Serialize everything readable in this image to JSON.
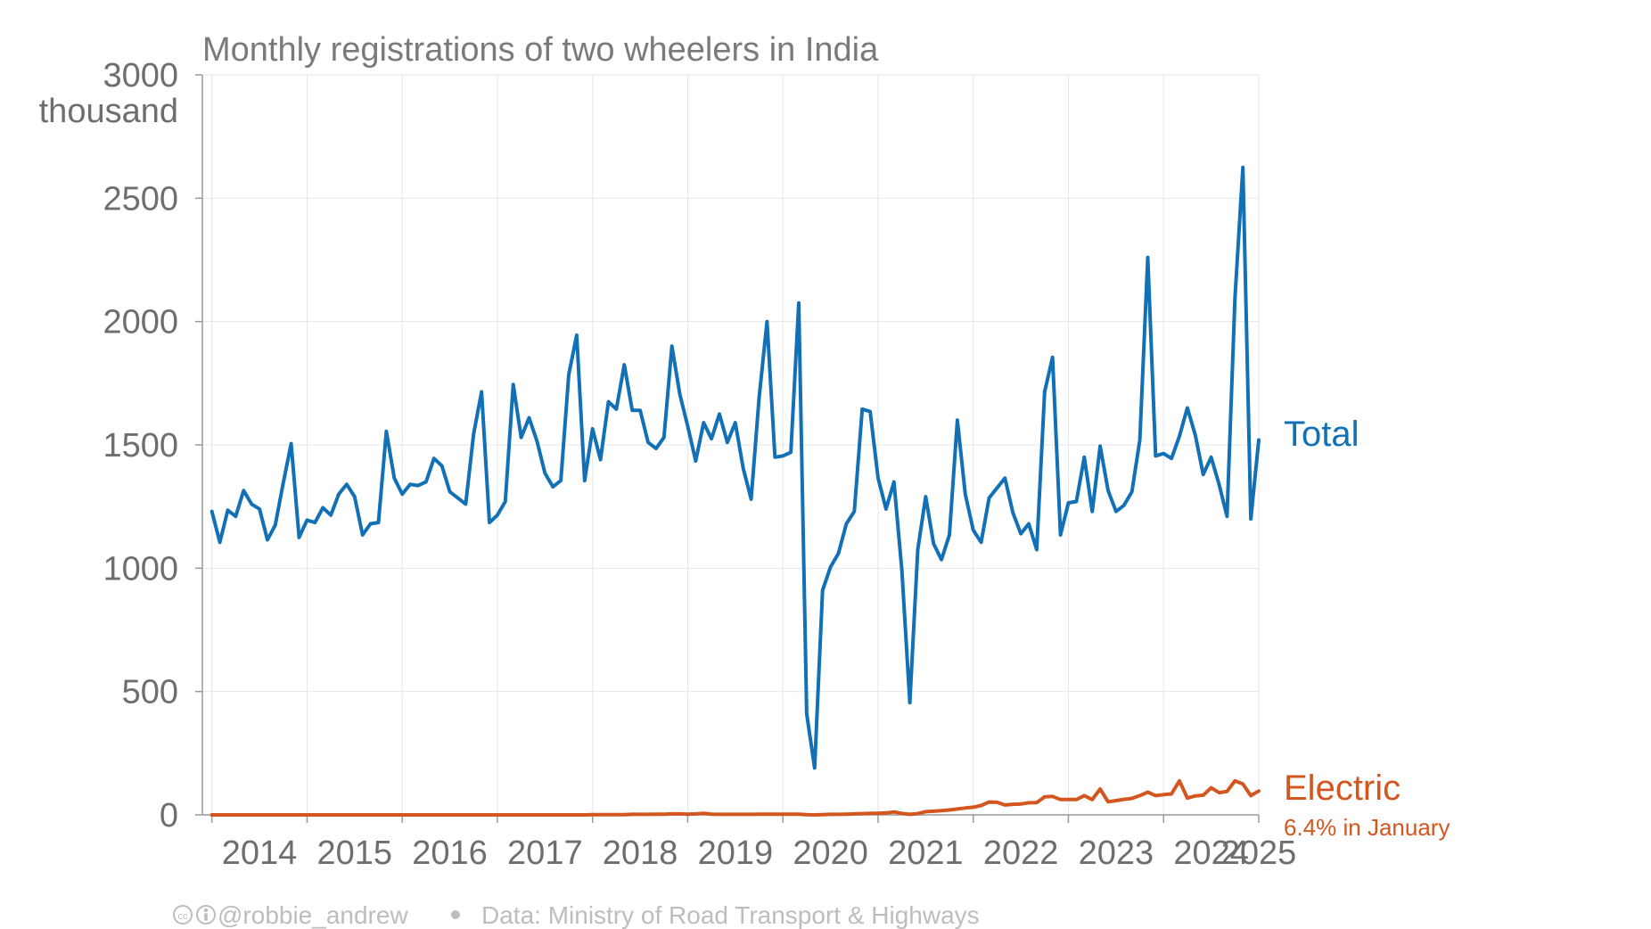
{
  "chart_data": {
    "type": "line",
    "title": "Monthly registrations of two wheelers in India",
    "ylabel_unit": "thousand",
    "ylim": [
      0,
      3000
    ],
    "yticks": [
      0,
      500,
      1000,
      1500,
      2000,
      2500,
      3000
    ],
    "xlim": [
      2013.9,
      2025.0
    ],
    "xticks": [
      2014,
      2015,
      2016,
      2017,
      2018,
      2019,
      2020,
      2021,
      2022,
      2023,
      2024,
      2025
    ],
    "xtick_labels": [
      "2014",
      "2015",
      "2016",
      "2017",
      "2018",
      "2019",
      "2020",
      "2021",
      "2022",
      "2023",
      "2024",
      "2025"
    ],
    "grid": true,
    "x_start": "2014-01",
    "series": [
      {
        "name": "Total",
        "color": "#1170b6",
        "values": [
          1230,
          1105,
          1235,
          1210,
          1315,
          1260,
          1240,
          1115,
          1175,
          1345,
          1505,
          1125,
          1195,
          1185,
          1245,
          1215,
          1300,
          1340,
          1290,
          1135,
          1180,
          1185,
          1555,
          1365,
          1300,
          1340,
          1335,
          1350,
          1445,
          1415,
          1310,
          1285,
          1260,
          1545,
          1715,
          1185,
          1215,
          1270,
          1745,
          1530,
          1610,
          1515,
          1385,
          1330,
          1355,
          1785,
          1945,
          1355,
          1565,
          1440,
          1675,
          1645,
          1825,
          1640,
          1640,
          1510,
          1485,
          1530,
          1900,
          1705,
          1575,
          1435,
          1590,
          1525,
          1625,
          1510,
          1590,
          1405,
          1280,
          1690,
          2000,
          1450,
          1455,
          1470,
          2075,
          410,
          190,
          910,
          1005,
          1060,
          1180,
          1230,
          1645,
          1635,
          1365,
          1240,
          1350,
          990,
          455,
          1075,
          1290,
          1100,
          1035,
          1135,
          1600,
          1300,
          1155,
          1105,
          1285,
          1325,
          1365,
          1225,
          1140,
          1180,
          1075,
          1715,
          1855,
          1135,
          1265,
          1270,
          1450,
          1230,
          1495,
          1315,
          1230,
          1255,
          1310,
          1520,
          2260,
          1455,
          1465,
          1445,
          1535,
          1650,
          1540,
          1380,
          1450,
          1340,
          1210,
          2095,
          2625,
          1200,
          1520
        ]
      },
      {
        "name": "Electric",
        "annotation": "6.4% in January",
        "color": "#d3561f",
        "values": [
          0,
          0,
          0,
          0,
          0,
          0,
          0,
          0,
          0,
          0,
          0,
          0,
          0,
          0,
          0,
          0,
          0,
          0,
          0,
          0,
          0,
          0,
          0,
          0,
          0,
          0,
          0,
          0,
          0,
          0,
          0,
          0,
          0,
          0,
          0,
          0,
          0,
          0,
          0,
          0,
          0,
          0,
          0,
          0,
          0,
          0,
          0,
          0,
          1,
          1,
          1,
          1,
          1,
          2,
          2,
          2,
          3,
          3,
          4,
          4,
          3,
          4,
          6,
          3,
          2,
          2,
          2,
          2,
          2,
          3,
          3,
          3,
          3,
          3,
          3,
          1,
          0,
          1,
          2,
          2,
          3,
          4,
          5,
          6,
          6,
          8,
          12,
          6,
          2,
          5,
          13,
          15,
          17,
          20,
          24,
          28,
          31,
          38,
          52,
          51,
          40,
          43,
          44,
          49,
          50,
          73,
          75,
          62,
          62,
          62,
          78,
          62,
          105,
          53,
          58,
          63,
          67,
          78,
          92,
          78,
          82,
          85,
          138,
          68,
          77,
          80,
          110,
          90,
          95,
          138,
          125,
          78,
          97
        ]
      }
    ]
  },
  "credit": {
    "author": "@robbie_andrew",
    "source": "Data: Ministry of Road Transport & Highways"
  }
}
